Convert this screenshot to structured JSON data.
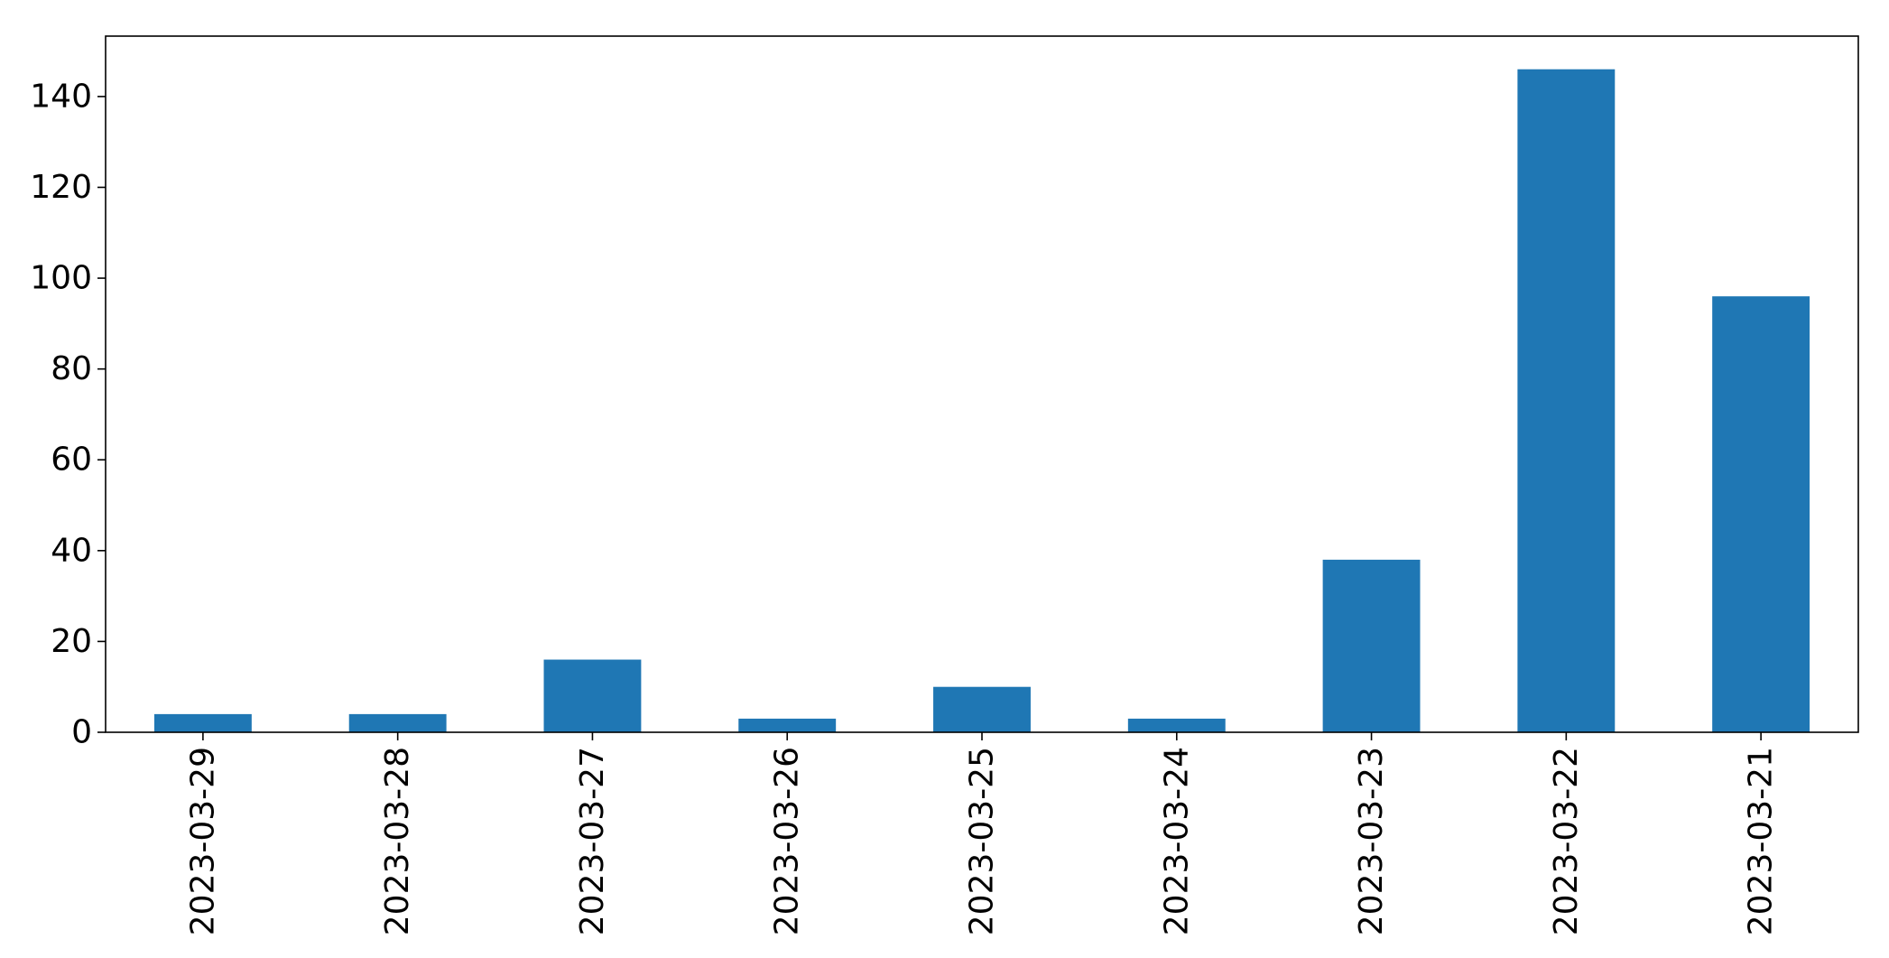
{
  "chart_data": {
    "type": "bar",
    "title": "",
    "xlabel": "",
    "ylabel": "",
    "categories": [
      "2023-03-29",
      "2023-03-28",
      "2023-03-27",
      "2023-03-26",
      "2023-03-25",
      "2023-03-24",
      "2023-03-23",
      "2023-03-22",
      "2023-03-21"
    ],
    "values": [
      4,
      4,
      16,
      3,
      10,
      3,
      38,
      146,
      96
    ],
    "ylim": [
      0,
      153.3
    ],
    "yticks": [
      0,
      20,
      40,
      60,
      80,
      100,
      120,
      140
    ],
    "ytick_labels": [
      "0",
      "20",
      "40",
      "60",
      "80",
      "100",
      "120",
      "140"
    ],
    "bar_color": "#1f77b4",
    "grid": false,
    "legend": "none"
  }
}
